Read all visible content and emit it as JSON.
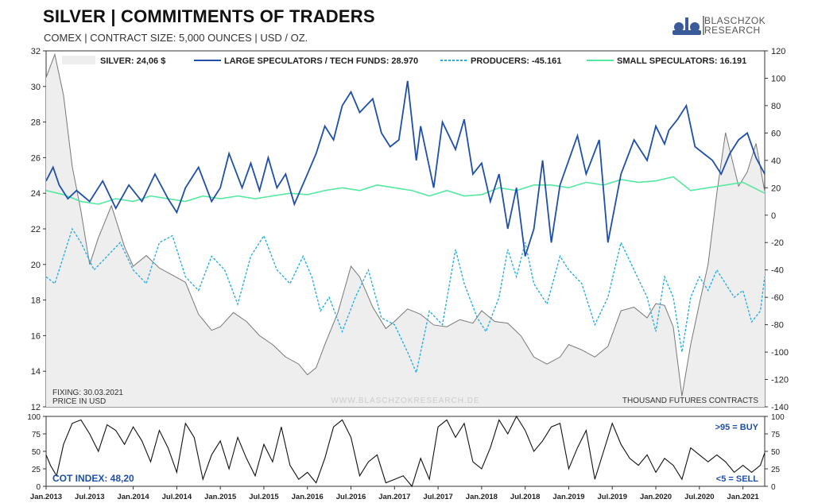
{
  "header": {
    "title": "SILVER | COMMITMENTS OF TRADERS",
    "subtitle": "COMEX | CONTRACT SIZE: 5,000 OUNCES | USD / OZ.",
    "logo_line1": "BLASCHZOK",
    "logo_line2": "RESEARCH"
  },
  "colors": {
    "silver_fill": "#eeeeee",
    "silver_line": "#777777",
    "large_specs": "#1f4fa8",
    "producers": "#2aaee0",
    "small_specs": "#55e8a0",
    "cot_line": "#111111",
    "label_blue": "#1f4fa8"
  },
  "chart_data": [
    {
      "type": "line",
      "title": "SILVER | COMMITMENTS OF TRADERS",
      "ylabel_left": "USD / OZ.",
      "ylabel_right": "THOUSAND FUTURES CONTRACTS",
      "ylim_left": [
        12,
        32
      ],
      "ylim_right": [
        -140,
        120
      ],
      "yticks_left": [
        12,
        14,
        16,
        18,
        20,
        22,
        24,
        26,
        28,
        30,
        32
      ],
      "yticks_right": [
        -140,
        -120,
        -100,
        -80,
        -60,
        -40,
        -20,
        0,
        20,
        40,
        60,
        80,
        100,
        120
      ],
      "xlim": [
        2013.0,
        2021.25
      ],
      "legend_placement": "top",
      "legend": [
        "SILVER: 24,06 $",
        "LARGE SPECULATORS / TECH FUNDS: 28.970",
        "PRODUCERS: -45.161",
        "SMALL SPECULATORS: 16.191"
      ],
      "annotations": {
        "fixing": "FIXING: 30.03.2021",
        "price_unit": "PRICE IN USD",
        "watermark": "WWW.BLASCHZOKRESEARCH.DE",
        "contracts_unit": "THOUSAND FUTURES CONTRACTS"
      },
      "series": [
        {
          "name": "SILVER",
          "axis": "left",
          "style": "area",
          "x": [
            2013.0,
            2013.1,
            2013.2,
            2013.3,
            2013.4,
            2013.5,
            2013.6,
            2013.75,
            2013.9,
            2014.0,
            2014.15,
            2014.3,
            2014.45,
            2014.6,
            2014.75,
            2014.9,
            2015.0,
            2015.15,
            2015.3,
            2015.45,
            2015.6,
            2015.75,
            2015.9,
            2016.0,
            2016.1,
            2016.2,
            2016.35,
            2016.5,
            2016.6,
            2016.75,
            2016.9,
            2017.0,
            2017.15,
            2017.3,
            2017.45,
            2017.6,
            2017.75,
            2017.9,
            2018.0,
            2018.15,
            2018.3,
            2018.45,
            2018.6,
            2018.75,
            2018.9,
            2019.0,
            2019.15,
            2019.3,
            2019.45,
            2019.6,
            2019.75,
            2019.9,
            2020.0,
            2020.1,
            2020.2,
            2020.3,
            2020.4,
            2020.5,
            2020.6,
            2020.7,
            2020.8,
            2020.95,
            2021.05,
            2021.15,
            2021.25
          ],
          "y": [
            30.5,
            31.8,
            29.5,
            25.5,
            23.0,
            20.0,
            21.5,
            23.3,
            21.0,
            19.9,
            20.5,
            19.8,
            19.4,
            19.0,
            17.2,
            16.3,
            16.5,
            17.3,
            16.8,
            16.0,
            15.5,
            14.8,
            14.4,
            13.8,
            14.2,
            15.5,
            17.3,
            19.9,
            19.3,
            17.6,
            16.4,
            16.8,
            17.5,
            17.2,
            16.6,
            16.5,
            16.9,
            16.7,
            17.4,
            16.8,
            16.7,
            16.0,
            14.8,
            14.4,
            14.8,
            15.5,
            15.2,
            14.8,
            15.4,
            17.4,
            17.6,
            17.0,
            17.8,
            17.7,
            16.5,
            12.6,
            15.5,
            17.8,
            20.0,
            24.0,
            27.4,
            24.4,
            25.2,
            26.8,
            24.1
          ]
        },
        {
          "name": "LARGE SPECULATORS / TECH FUNDS",
          "axis": "right",
          "x": [
            2013.0,
            2013.08,
            2013.15,
            2013.25,
            2013.35,
            2013.5,
            2013.65,
            2013.8,
            2013.95,
            2014.1,
            2014.25,
            2014.4,
            2014.5,
            2014.6,
            2014.75,
            2014.9,
            2015.0,
            2015.1,
            2015.25,
            2015.35,
            2015.45,
            2015.55,
            2015.65,
            2015.75,
            2015.85,
            2016.0,
            2016.1,
            2016.2,
            2016.3,
            2016.4,
            2016.5,
            2016.6,
            2016.75,
            2016.85,
            2016.95,
            2017.05,
            2017.15,
            2017.25,
            2017.3,
            2017.45,
            2017.55,
            2017.7,
            2017.8,
            2017.9,
            2018.0,
            2018.1,
            2018.2,
            2018.3,
            2018.4,
            2018.5,
            2018.6,
            2018.7,
            2018.8,
            2018.9,
            2019.0,
            2019.1,
            2019.2,
            2019.35,
            2019.45,
            2019.6,
            2019.75,
            2019.9,
            2020.0,
            2020.1,
            2020.15,
            2020.25,
            2020.35,
            2020.45,
            2020.55,
            2020.65,
            2020.75,
            2020.85,
            2020.95,
            2021.05,
            2021.15,
            2021.25
          ],
          "y": [
            25,
            35,
            22,
            12,
            18,
            10,
            25,
            5,
            22,
            10,
            30,
            12,
            2,
            20,
            35,
            10,
            20,
            45,
            20,
            38,
            18,
            42,
            20,
            30,
            8,
            30,
            45,
            65,
            55,
            80,
            90,
            75,
            85,
            60,
            50,
            55,
            98,
            40,
            65,
            20,
            68,
            48,
            70,
            30,
            38,
            10,
            30,
            -10,
            20,
            -30,
            -10,
            40,
            -20,
            22,
            40,
            58,
            30,
            55,
            -20,
            30,
            55,
            40,
            65,
            52,
            62,
            70,
            80,
            50,
            45,
            40,
            30,
            45,
            55,
            60,
            42,
            30
          ],
          "last_value": 28.97
        },
        {
          "name": "PRODUCERS",
          "axis": "right",
          "style": "dashed",
          "x": [
            2013.0,
            2013.1,
            2013.2,
            2013.3,
            2013.4,
            2013.55,
            2013.7,
            2013.85,
            2014.0,
            2014.15,
            2014.3,
            2014.45,
            2014.6,
            2014.75,
            2014.9,
            2015.05,
            2015.2,
            2015.35,
            2015.5,
            2015.65,
            2015.8,
            2015.95,
            2016.05,
            2016.15,
            2016.25,
            2016.4,
            2016.55,
            2016.7,
            2016.85,
            2017.0,
            2017.15,
            2017.25,
            2017.4,
            2017.55,
            2017.7,
            2017.8,
            2017.95,
            2018.05,
            2018.2,
            2018.3,
            2018.4,
            2018.5,
            2018.6,
            2018.75,
            2018.9,
            2019.0,
            2019.15,
            2019.3,
            2019.45,
            2019.6,
            2019.75,
            2019.9,
            2020.0,
            2020.1,
            2020.2,
            2020.3,
            2020.4,
            2020.5,
            2020.6,
            2020.7,
            2020.8,
            2020.9,
            2021.0,
            2021.1,
            2021.2,
            2021.25
          ],
          "y": [
            -45,
            -50,
            -30,
            -10,
            -20,
            -40,
            -30,
            -20,
            -40,
            -50,
            -20,
            -15,
            -45,
            -55,
            -30,
            -40,
            -65,
            -30,
            -15,
            -40,
            -50,
            -30,
            -45,
            -70,
            -60,
            -85,
            -60,
            -40,
            -75,
            -80,
            -100,
            -115,
            -70,
            -80,
            -25,
            -50,
            -75,
            -85,
            -60,
            -25,
            -45,
            -20,
            -50,
            -65,
            -30,
            -40,
            -50,
            -80,
            -60,
            -20,
            -40,
            -60,
            -85,
            -45,
            -60,
            -100,
            -60,
            -45,
            -55,
            -40,
            -50,
            -60,
            -55,
            -78,
            -70,
            -45
          ],
          "last_value": -45.161
        },
        {
          "name": "SMALL SPECULATORS",
          "axis": "right",
          "x": [
            2013.0,
            2013.2,
            2013.4,
            2013.6,
            2013.8,
            2014.0,
            2014.2,
            2014.4,
            2014.6,
            2014.8,
            2015.0,
            2015.2,
            2015.4,
            2015.6,
            2015.8,
            2016.0,
            2016.2,
            2016.4,
            2016.6,
            2016.8,
            2017.0,
            2017.2,
            2017.4,
            2017.6,
            2017.8,
            2018.0,
            2018.2,
            2018.4,
            2018.6,
            2018.8,
            2019.0,
            2019.2,
            2019.4,
            2019.6,
            2019.8,
            2020.0,
            2020.2,
            2020.4,
            2020.6,
            2020.8,
            2021.0,
            2021.25
          ],
          "y": [
            18,
            15,
            10,
            8,
            12,
            10,
            14,
            12,
            10,
            14,
            12,
            14,
            12,
            14,
            16,
            15,
            18,
            20,
            18,
            22,
            20,
            18,
            14,
            18,
            14,
            15,
            20,
            18,
            22,
            22,
            20,
            24,
            22,
            26,
            24,
            25,
            28,
            18,
            20,
            22,
            24,
            16
          ],
          "last_value": 16.191
        }
      ],
      "x_tick_labels": [
        "Jan.2013",
        "Jul.2013",
        "Jan.2014",
        "Jul.2014",
        "Jan.2015",
        "Jul.2015",
        "Jan.2016",
        "Jul.2016",
        "Jan.2017",
        "Jul.2017",
        "Jan.2018",
        "Jul.2018",
        "Jan.2019",
        "Jul.2019",
        "Jan.2020",
        "Jul.2020",
        "Jan.2021"
      ]
    },
    {
      "type": "line",
      "title": "COT INDEX",
      "ylim": [
        0,
        100
      ],
      "yticks": [
        0,
        25,
        50,
        75,
        100
      ],
      "labels": {
        "current": "COT INDEX: 48,20",
        "buy": ">95 = BUY",
        "sell": "<5 = SELL"
      },
      "series": [
        {
          "name": "COT INDEX",
          "x": [
            2013.0,
            2013.05,
            2013.12,
            2013.2,
            2013.3,
            2013.4,
            2013.5,
            2013.6,
            2013.7,
            2013.8,
            2013.9,
            2014.0,
            2014.1,
            2014.2,
            2014.3,
            2014.4,
            2014.5,
            2014.6,
            2014.7,
            2014.8,
            2014.9,
            2015.0,
            2015.1,
            2015.2,
            2015.3,
            2015.4,
            2015.5,
            2015.6,
            2015.7,
            2015.8,
            2015.9,
            2016.0,
            2016.1,
            2016.2,
            2016.3,
            2016.4,
            2016.5,
            2016.6,
            2016.7,
            2016.8,
            2016.9,
            2017.0,
            2017.1,
            2017.2,
            2017.3,
            2017.4,
            2017.5,
            2017.6,
            2017.7,
            2017.8,
            2017.9,
            2018.0,
            2018.1,
            2018.2,
            2018.3,
            2018.4,
            2018.5,
            2018.6,
            2018.7,
            2018.8,
            2018.9,
            2019.0,
            2019.1,
            2019.2,
            2019.3,
            2019.4,
            2019.5,
            2019.6,
            2019.7,
            2019.8,
            2019.9,
            2020.0,
            2020.1,
            2020.2,
            2020.3,
            2020.4,
            2020.5,
            2020.6,
            2020.7,
            2020.8,
            2020.9,
            2021.0,
            2021.1,
            2021.2,
            2021.25
          ],
          "y": [
            45,
            30,
            15,
            60,
            90,
            95,
            75,
            50,
            88,
            80,
            60,
            85,
            65,
            35,
            80,
            55,
            20,
            90,
            70,
            10,
            45,
            65,
            25,
            70,
            40,
            15,
            60,
            35,
            85,
            30,
            10,
            20,
            5,
            40,
            85,
            95,
            70,
            15,
            35,
            45,
            5,
            10,
            15,
            0,
            40,
            10,
            85,
            95,
            70,
            90,
            35,
            25,
            55,
            95,
            75,
            100,
            80,
            50,
            65,
            85,
            90,
            25,
            55,
            80,
            10,
            50,
            90,
            60,
            40,
            30,
            45,
            20,
            40,
            30,
            10,
            55,
            45,
            35,
            45,
            35,
            20,
            30,
            20,
            30,
            48
          ]
        }
      ]
    }
  ]
}
